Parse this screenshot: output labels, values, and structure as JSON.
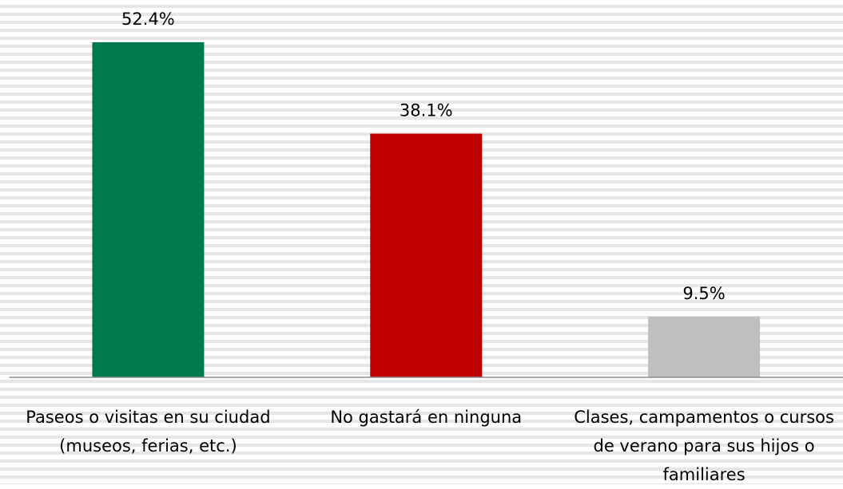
{
  "chart_data": {
    "type": "bar",
    "categories": [
      "Paseos o visitas en su ciudad (museos, ferias, etc.)",
      "No gastará en ninguna",
      "Clases, campamentos o cursos de verano para sus hijos o familiares"
    ],
    "values": [
      52.4,
      38.1,
      9.5
    ],
    "value_labels": [
      "52.4%",
      "38.1%",
      "9.5%"
    ],
    "colors": [
      "#007a4d",
      "#c00000",
      "#bfbfbf"
    ],
    "ylim": [
      0,
      59
    ]
  }
}
